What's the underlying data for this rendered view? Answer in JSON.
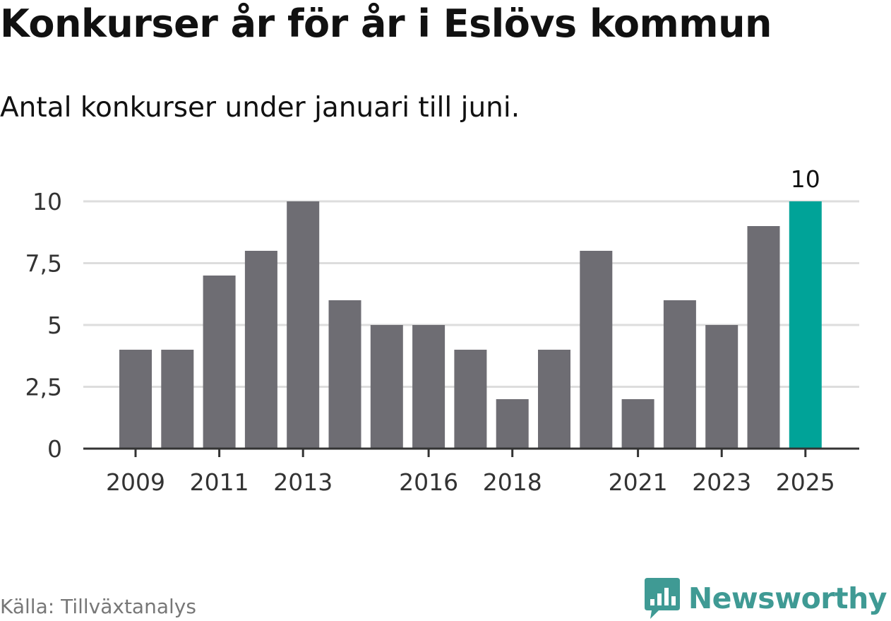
{
  "title": "Konkurser år för år i Eslövs kommun",
  "subtitle": "Antal konkurser under januari till juni.",
  "source": "Källa: Tillväxtanalys",
  "brand": {
    "name": "Newsworthy",
    "icon": "newsworthy-logo-icon",
    "color": "#3f9a94"
  },
  "colors": {
    "bar": "#6e6d73",
    "highlight": "#00a398",
    "grid": "#dddddd",
    "axis": "#333333"
  },
  "chart_data": {
    "type": "bar",
    "title": "Konkurser år för år i Eslövs kommun",
    "subtitle": "Antal konkurser under januari till juni.",
    "categories": [
      "2009",
      "2010",
      "2011",
      "2012",
      "2013",
      "2014",
      "2015",
      "2016",
      "2017",
      "2018",
      "2019",
      "2020",
      "2021",
      "2022",
      "2023",
      "2024",
      "2025"
    ],
    "values": [
      4,
      4,
      7,
      8,
      10,
      6,
      5,
      5,
      4,
      2,
      4,
      8,
      2,
      6,
      5,
      9,
      10
    ],
    "x_tick_labels": [
      "2009",
      "2011",
      "2013",
      "2016",
      "2018",
      "2021",
      "2023",
      "2025"
    ],
    "y_ticks": [
      0,
      2.5,
      5,
      7.5,
      10
    ],
    "y_tick_labels": [
      "0",
      "2,5",
      "5",
      "7,5",
      "10"
    ],
    "ylim": [
      0,
      10
    ],
    "highlight_category": "2025",
    "data_labels": [
      {
        "category": "2025",
        "text": "10"
      }
    ],
    "grid": true,
    "xlabel": "",
    "ylabel": ""
  }
}
